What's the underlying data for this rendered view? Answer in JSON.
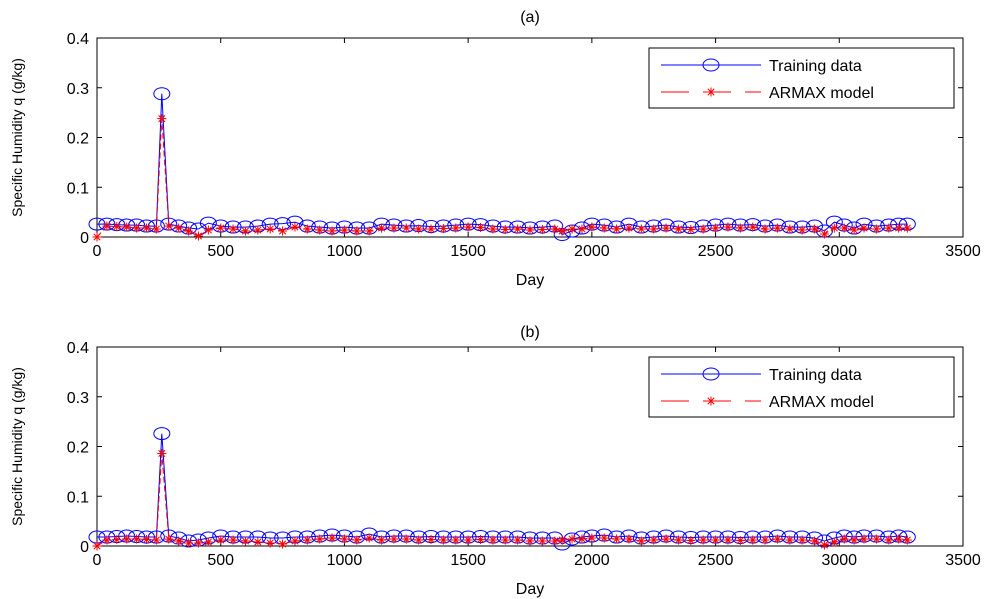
{
  "chart_data": [
    {
      "type": "line",
      "title": "(a)",
      "xlabel": "Day",
      "ylabel": "Specific Humidity q (g/kg)",
      "xlim": [
        0,
        3500
      ],
      "ylim": [
        0,
        0.4
      ],
      "xticks": [
        "0",
        "500",
        "1000",
        "1500",
        "2000",
        "2500",
        "3000",
        "3500"
      ],
      "yticks": [
        "0",
        "0.1",
        "0.2",
        "0.3",
        "0.4"
      ],
      "legend": "top-right",
      "series": [
        {
          "name": "Training data",
          "color": "#0000ff",
          "line": "solid",
          "marker": "circle",
          "x": [
            0,
            40,
            80,
            120,
            160,
            200,
            240,
            262,
            290,
            330,
            370,
            410,
            450,
            500,
            550,
            600,
            650,
            700,
            750,
            800,
            850,
            900,
            950,
            1000,
            1050,
            1100,
            1150,
            1200,
            1250,
            1300,
            1350,
            1400,
            1450,
            1500,
            1550,
            1600,
            1650,
            1700,
            1750,
            1800,
            1850,
            1880,
            1920,
            1960,
            2000,
            2050,
            2100,
            2150,
            2200,
            2250,
            2300,
            2350,
            2400,
            2450,
            2500,
            2550,
            2600,
            2650,
            2700,
            2750,
            2800,
            2850,
            2900,
            2940,
            2980,
            3020,
            3060,
            3100,
            3150,
            3200,
            3240,
            3275
          ],
          "values": [
            0.026,
            0.026,
            0.025,
            0.024,
            0.024,
            0.022,
            0.022,
            0.288,
            0.026,
            0.022,
            0.018,
            0.016,
            0.028,
            0.022,
            0.02,
            0.02,
            0.022,
            0.026,
            0.027,
            0.03,
            0.022,
            0.02,
            0.018,
            0.02,
            0.018,
            0.018,
            0.026,
            0.024,
            0.022,
            0.023,
            0.021,
            0.022,
            0.024,
            0.026,
            0.025,
            0.022,
            0.02,
            0.02,
            0.018,
            0.02,
            0.022,
            0.005,
            0.012,
            0.018,
            0.026,
            0.024,
            0.02,
            0.026,
            0.02,
            0.022,
            0.024,
            0.02,
            0.019,
            0.022,
            0.024,
            0.026,
            0.024,
            0.025,
            0.022,
            0.024,
            0.02,
            0.02,
            0.022,
            0.012,
            0.03,
            0.024,
            0.018,
            0.026,
            0.022,
            0.024,
            0.026,
            0.026
          ]
        },
        {
          "name": "ARMAX model",
          "color": "#ff0000",
          "line": "dashed",
          "marker": "asterisk",
          "x": [
            0,
            40,
            80,
            120,
            160,
            200,
            240,
            262,
            290,
            330,
            370,
            410,
            450,
            500,
            550,
            600,
            650,
            700,
            750,
            800,
            850,
            900,
            950,
            1000,
            1050,
            1100,
            1150,
            1200,
            1250,
            1300,
            1350,
            1400,
            1450,
            1500,
            1550,
            1600,
            1650,
            1700,
            1750,
            1800,
            1850,
            1880,
            1920,
            1960,
            2000,
            2050,
            2100,
            2150,
            2200,
            2250,
            2300,
            2350,
            2400,
            2450,
            2500,
            2550,
            2600,
            2650,
            2700,
            2750,
            2800,
            2850,
            2900,
            2940,
            2980,
            3020,
            3060,
            3100,
            3150,
            3200,
            3240,
            3275
          ],
          "values": [
            0.0,
            0.022,
            0.021,
            0.02,
            0.018,
            0.018,
            0.016,
            0.238,
            0.022,
            0.018,
            0.012,
            0.002,
            0.014,
            0.018,
            0.016,
            0.012,
            0.014,
            0.016,
            0.012,
            0.02,
            0.016,
            0.014,
            0.012,
            0.014,
            0.012,
            0.012,
            0.018,
            0.018,
            0.018,
            0.016,
            0.016,
            0.017,
            0.018,
            0.02,
            0.019,
            0.016,
            0.015,
            0.016,
            0.014,
            0.015,
            0.016,
            0.012,
            0.016,
            0.016,
            0.02,
            0.018,
            0.016,
            0.018,
            0.016,
            0.016,
            0.018,
            0.016,
            0.015,
            0.016,
            0.018,
            0.02,
            0.018,
            0.02,
            0.016,
            0.018,
            0.016,
            0.014,
            0.016,
            0.006,
            0.018,
            0.018,
            0.014,
            0.018,
            0.016,
            0.018,
            0.018,
            0.018
          ]
        }
      ]
    },
    {
      "type": "line",
      "title": "(b)",
      "xlabel": "Day",
      "ylabel": "Specific Humidity q (g/kg)",
      "xlim": [
        0,
        3500
      ],
      "ylim": [
        0,
        0.4
      ],
      "xticks": [
        "0",
        "500",
        "1000",
        "1500",
        "2000",
        "2500",
        "3000",
        "3500"
      ],
      "yticks": [
        "0",
        "0.1",
        "0.2",
        "0.3",
        "0.4"
      ],
      "legend": "top-right",
      "series": [
        {
          "name": "Training data",
          "color": "#0000ff",
          "line": "solid",
          "marker": "circle",
          "x": [
            0,
            40,
            80,
            120,
            160,
            200,
            240,
            262,
            290,
            330,
            370,
            410,
            450,
            500,
            550,
            600,
            650,
            700,
            750,
            800,
            850,
            900,
            950,
            1000,
            1050,
            1100,
            1150,
            1200,
            1250,
            1300,
            1350,
            1400,
            1450,
            1500,
            1550,
            1600,
            1650,
            1700,
            1750,
            1800,
            1850,
            1880,
            1920,
            1960,
            2000,
            2050,
            2100,
            2150,
            2200,
            2250,
            2300,
            2350,
            2400,
            2450,
            2500,
            2550,
            2600,
            2650,
            2700,
            2750,
            2800,
            2850,
            2900,
            2940,
            2980,
            3020,
            3060,
            3100,
            3150,
            3200,
            3240,
            3275
          ],
          "values": [
            0.018,
            0.018,
            0.019,
            0.02,
            0.019,
            0.018,
            0.018,
            0.226,
            0.02,
            0.016,
            0.01,
            0.012,
            0.016,
            0.02,
            0.018,
            0.018,
            0.018,
            0.016,
            0.016,
            0.018,
            0.018,
            0.02,
            0.022,
            0.02,
            0.018,
            0.024,
            0.018,
            0.02,
            0.02,
            0.018,
            0.019,
            0.018,
            0.018,
            0.018,
            0.019,
            0.018,
            0.018,
            0.018,
            0.016,
            0.016,
            0.016,
            0.004,
            0.014,
            0.018,
            0.02,
            0.022,
            0.018,
            0.02,
            0.016,
            0.018,
            0.02,
            0.018,
            0.017,
            0.018,
            0.018,
            0.018,
            0.017,
            0.018,
            0.018,
            0.02,
            0.018,
            0.018,
            0.016,
            0.01,
            0.016,
            0.02,
            0.018,
            0.02,
            0.02,
            0.018,
            0.02,
            0.018
          ]
        },
        {
          "name": "ARMAX model",
          "color": "#ff0000",
          "line": "dashed",
          "marker": "asterisk",
          "x": [
            0,
            40,
            80,
            120,
            160,
            200,
            240,
            262,
            290,
            330,
            370,
            410,
            450,
            500,
            550,
            600,
            650,
            700,
            750,
            800,
            850,
            900,
            950,
            1000,
            1050,
            1100,
            1150,
            1200,
            1250,
            1300,
            1350,
            1400,
            1450,
            1500,
            1550,
            1600,
            1650,
            1700,
            1750,
            1800,
            1850,
            1880,
            1920,
            1960,
            2000,
            2050,
            2100,
            2150,
            2200,
            2250,
            2300,
            2350,
            2400,
            2450,
            2500,
            2550,
            2600,
            2650,
            2700,
            2750,
            2800,
            2850,
            2900,
            2940,
            2980,
            3020,
            3060,
            3100,
            3150,
            3200,
            3240,
            3275
          ],
          "values": [
            0.0,
            0.012,
            0.013,
            0.014,
            0.014,
            0.013,
            0.012,
            0.186,
            0.014,
            0.01,
            0.006,
            0.006,
            0.008,
            0.012,
            0.012,
            0.01,
            0.008,
            0.006,
            0.004,
            0.01,
            0.012,
            0.014,
            0.016,
            0.014,
            0.012,
            0.016,
            0.012,
            0.014,
            0.014,
            0.012,
            0.013,
            0.012,
            0.012,
            0.012,
            0.013,
            0.012,
            0.012,
            0.012,
            0.01,
            0.01,
            0.01,
            0.012,
            0.014,
            0.014,
            0.016,
            0.016,
            0.014,
            0.014,
            0.01,
            0.012,
            0.014,
            0.012,
            0.011,
            0.012,
            0.012,
            0.012,
            0.011,
            0.012,
            0.012,
            0.014,
            0.012,
            0.012,
            0.01,
            0.002,
            0.008,
            0.014,
            0.012,
            0.014,
            0.014,
            0.012,
            0.014,
            0.012
          ]
        }
      ]
    }
  ]
}
